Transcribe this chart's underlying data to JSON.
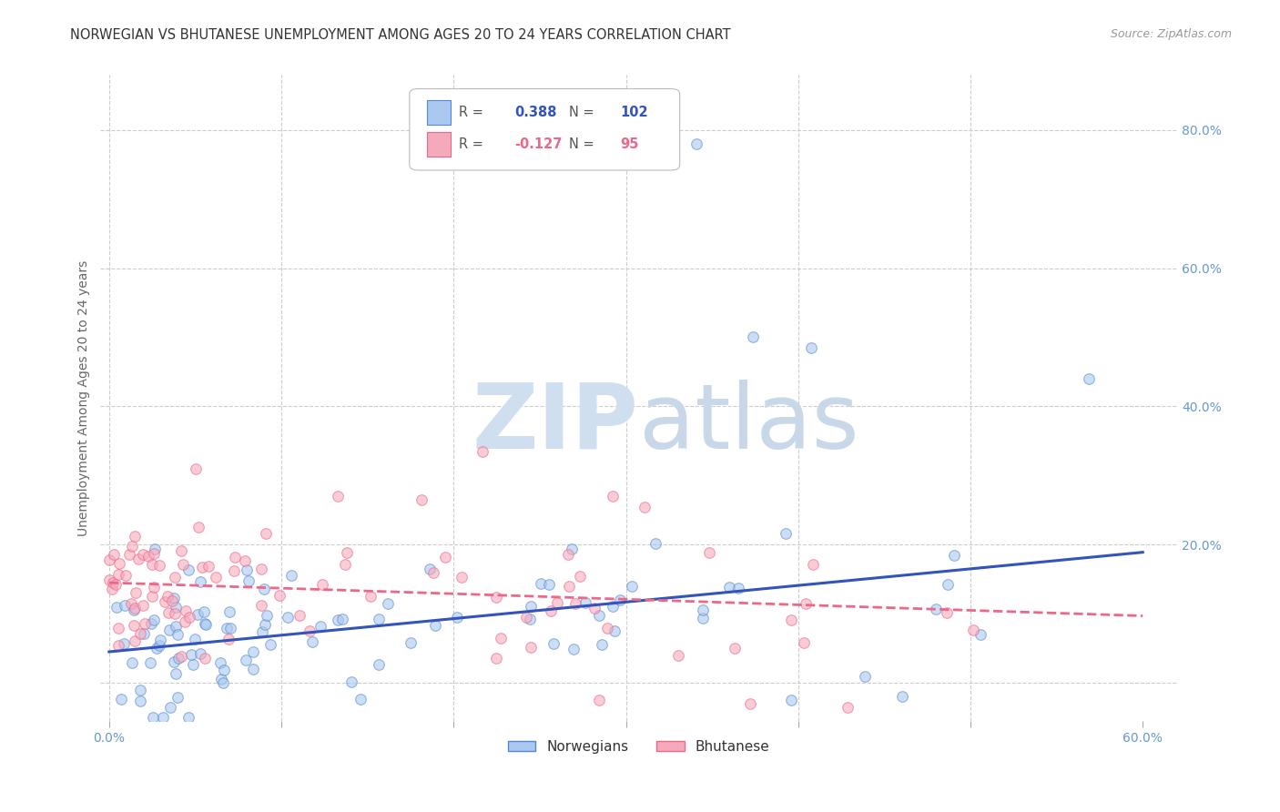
{
  "title": "NORWEGIAN VS BHUTANESE UNEMPLOYMENT AMONG AGES 20 TO 24 YEARS CORRELATION CHART",
  "source": "Source: ZipAtlas.com",
  "ylabel": "Unemployment Among Ages 20 to 24 years",
  "xlim": [
    -0.005,
    0.62
  ],
  "ylim": [
    -0.055,
    0.88
  ],
  "grid_color": "#cccccc",
  "background_color": "#ffffff",
  "norwegian_fill": "#aac8f0",
  "norwegian_edge": "#5588cc",
  "bhutanese_fill": "#f5aabc",
  "bhutanese_edge": "#ee6688",
  "norwegian_line_color": "#3355bb",
  "bhutanese_line_color": "#ee6688",
  "tick_label_color": "#6699cc",
  "title_color": "#333333",
  "axis_label_color": "#666666",
  "watermark_color": "#d0dff0",
  "legend_R_nor": "0.388",
  "legend_N_nor": "102",
  "legend_R_bhu": "-0.127",
  "legend_N_bhu": "95",
  "nor_intercept": 0.045,
  "nor_slope": 0.24,
  "bhu_intercept": 0.145,
  "bhu_slope": -0.08,
  "scatter_size": 70,
  "scatter_alpha": 0.6,
  "scatter_lw": 0.8
}
